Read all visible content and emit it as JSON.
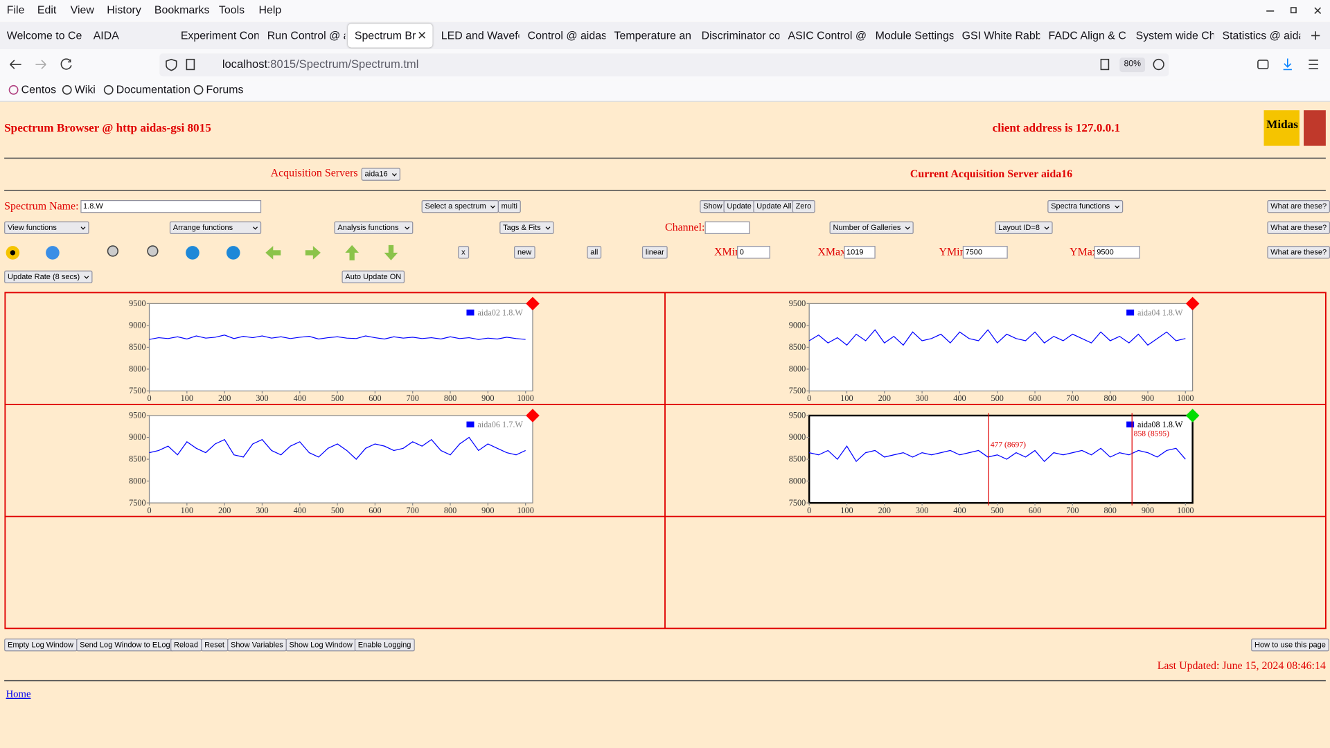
{
  "menu": [
    "File",
    "Edit",
    "View",
    "History",
    "Bookmarks",
    "Tools",
    "Help"
  ],
  "tabs": [
    "Welcome to Ce",
    "AIDA",
    "Experiment Con",
    "Run Control @ a",
    "Spectrum Bro",
    "LED and Wavefo",
    "Control @ aidas",
    "Temperature an",
    "Discriminator co",
    "ASIC Control @",
    "Module Settings",
    "GSI White Rabbi",
    "FADC Align & C",
    "System wide Ch",
    "Statistics @ aida"
  ],
  "address": {
    "host": "localhost",
    "path": ":8015/Spectrum/Spectrum.tml",
    "zoom": "80%"
  },
  "bookmarks": [
    "Centos",
    "Wiki",
    "Documentation",
    "Forums"
  ],
  "header": {
    "title": "Spectrum Browser @ http aidas-gsi 8015",
    "client": "client address is 127.0.0.1",
    "logo": "Midas"
  },
  "acquisition": {
    "label": "Acquisition Servers",
    "server": "aida16",
    "current": "Current Acquisition Server aida16"
  },
  "controls": {
    "spectrum_name_label": "Spectrum Name:",
    "spectrum_name": "1.8.W",
    "select_spectrum": "Select a spectrum",
    "multi": "multi",
    "show": "Show",
    "update": "Update",
    "update_all": "Update All",
    "zero": "Zero",
    "spectra_functions": "Spectra functions",
    "help": [
      "What are these?",
      "What are these?",
      "What are these?"
    ],
    "view_functions": "View functions",
    "arrange_functions": "Arrange functions",
    "analysis_functions": "Analysis functions",
    "tags_fits": "Tags & Fits",
    "channel_label": "Channel:",
    "galleries": "Number of Galleries",
    "layout": "Layout ID=8",
    "x_button": "x",
    "new": "new",
    "all": "all",
    "linear": "linear",
    "xmin_label": "XMin",
    "xmin": "0",
    "xmax_label": "XMax",
    "xmax": "1019",
    "ymin_label": "YMin",
    "ymin": "7500",
    "ymax_label": "YMax",
    "ymax": "9500",
    "update_rate": "Update Rate (8 secs)",
    "auto_update": "Auto Update ON"
  },
  "footer": {
    "buttons": [
      "Empty Log Window",
      "Send Log Window to ELog",
      "Reload",
      "Reset",
      "Show Variables",
      "Show Log Window",
      "Enable Logging"
    ],
    "help": "How to use this page",
    "last_updated": "Last Updated: June 15, 2024 08:46:14",
    "home": "Home"
  },
  "chart_data": [
    {
      "type": "line",
      "status_color": "#ff0000",
      "series": [
        {
          "name": "aida02 1.8.W",
          "color": "#0000ff",
          "values": [
            8680,
            8720,
            8700,
            8740,
            8690,
            8760,
            8710,
            8730,
            8780,
            8700,
            8750,
            8720,
            8760,
            8710,
            8740,
            8700,
            8730,
            8750,
            8690,
            8720,
            8740,
            8710,
            8700,
            8760,
            8720,
            8690,
            8740,
            8710,
            8730,
            8700,
            8720,
            8690,
            8740,
            8700,
            8720,
            8680,
            8710,
            8690,
            8730,
            8700,
            8680
          ]
        }
      ],
      "x": [
        0,
        25,
        50,
        75,
        100,
        125,
        150,
        175,
        200,
        225,
        250,
        275,
        300,
        325,
        350,
        375,
        400,
        425,
        450,
        475,
        500,
        525,
        550,
        575,
        600,
        625,
        650,
        675,
        700,
        725,
        750,
        775,
        800,
        825,
        850,
        875,
        900,
        925,
        950,
        975,
        1000
      ],
      "xlim": [
        0,
        1019
      ],
      "ylim": [
        7500,
        9500
      ],
      "xticks": [
        0,
        100,
        200,
        300,
        400,
        500,
        600,
        700,
        800,
        900,
        1000
      ],
      "yticks": [
        7500,
        8000,
        8500,
        9000,
        9500
      ]
    },
    {
      "type": "line",
      "status_color": "#ff0000",
      "series": [
        {
          "name": "aida04 1.8.W",
          "color": "#0000ff",
          "values": [
            8650,
            8780,
            8600,
            8720,
            8550,
            8800,
            8650,
            8900,
            8600,
            8750,
            8550,
            8850,
            8650,
            8700,
            8800,
            8600,
            8850,
            8700,
            8650,
            8900,
            8600,
            8800,
            8700,
            8650,
            8850,
            8600,
            8750,
            8650,
            8800,
            8700,
            8600,
            8850,
            8650,
            8750,
            8600,
            8800,
            8550,
            8700,
            8850,
            8650,
            8700
          ]
        }
      ],
      "x": [
        0,
        25,
        50,
        75,
        100,
        125,
        150,
        175,
        200,
        225,
        250,
        275,
        300,
        325,
        350,
        375,
        400,
        425,
        450,
        475,
        500,
        525,
        550,
        575,
        600,
        625,
        650,
        675,
        700,
        725,
        750,
        775,
        800,
        825,
        850,
        875,
        900,
        925,
        950,
        975,
        1000
      ],
      "xlim": [
        0,
        1019
      ],
      "ylim": [
        7500,
        9500
      ],
      "xticks": [
        0,
        100,
        200,
        300,
        400,
        500,
        600,
        700,
        800,
        900,
        1000
      ],
      "yticks": [
        7500,
        8000,
        8500,
        9000,
        9500
      ]
    },
    {
      "type": "line",
      "status_color": "#ff0000",
      "series": [
        {
          "name": "aida06 1.7.W",
          "color": "#0000ff",
          "values": [
            8650,
            8700,
            8800,
            8600,
            8900,
            8750,
            8650,
            8850,
            8950,
            8600,
            8550,
            8850,
            8950,
            8700,
            8600,
            8800,
            8900,
            8650,
            8550,
            8750,
            8850,
            8700,
            8500,
            8750,
            8850,
            8800,
            8700,
            8750,
            8900,
            8800,
            8950,
            8700,
            8600,
            8850,
            9000,
            8700,
            8850,
            8750,
            8650,
            8600,
            8700
          ]
        }
      ],
      "x": [
        0,
        25,
        50,
        75,
        100,
        125,
        150,
        175,
        200,
        225,
        250,
        275,
        300,
        325,
        350,
        375,
        400,
        425,
        450,
        475,
        500,
        525,
        550,
        575,
        600,
        625,
        650,
        675,
        700,
        725,
        750,
        775,
        800,
        825,
        850,
        875,
        900,
        925,
        950,
        975,
        1000
      ],
      "xlim": [
        0,
        1019
      ],
      "ylim": [
        7500,
        9500
      ],
      "xticks": [
        0,
        100,
        200,
        300,
        400,
        500,
        600,
        700,
        800,
        900,
        1000
      ],
      "yticks": [
        7500,
        8000,
        8500,
        9000,
        9500
      ]
    },
    {
      "type": "line",
      "status_color": "#00dd00",
      "series": [
        {
          "name": "aida08 1.8.W",
          "color": "#0000ff",
          "values": [
            8650,
            8600,
            8700,
            8500,
            8800,
            8450,
            8650,
            8700,
            8550,
            8600,
            8650,
            8550,
            8650,
            8600,
            8650,
            8700,
            8600,
            8650,
            8700,
            8550,
            8600,
            8500,
            8650,
            8550,
            8700,
            8450,
            8650,
            8600,
            8650,
            8700,
            8600,
            8750,
            8550,
            8650,
            8600,
            8700,
            8650,
            8550,
            8700,
            8750,
            8500
          ]
        }
      ],
      "x": [
        0,
        25,
        50,
        75,
        100,
        125,
        150,
        175,
        200,
        225,
        250,
        275,
        300,
        325,
        350,
        375,
        400,
        425,
        450,
        475,
        500,
        525,
        550,
        575,
        600,
        625,
        650,
        675,
        700,
        725,
        750,
        775,
        800,
        825,
        850,
        875,
        900,
        925,
        950,
        975,
        1000
      ],
      "xlim": [
        0,
        1019
      ],
      "ylim": [
        7500,
        9500
      ],
      "xticks": [
        0,
        100,
        200,
        300,
        400,
        500,
        600,
        700,
        800,
        900,
        1000
      ],
      "yticks": [
        7500,
        8000,
        8500,
        9000,
        9500
      ],
      "annotations": [
        {
          "label": "477 (8697)",
          "x": 477
        },
        {
          "label": "858 (8595)",
          "x": 858
        }
      ]
    }
  ]
}
